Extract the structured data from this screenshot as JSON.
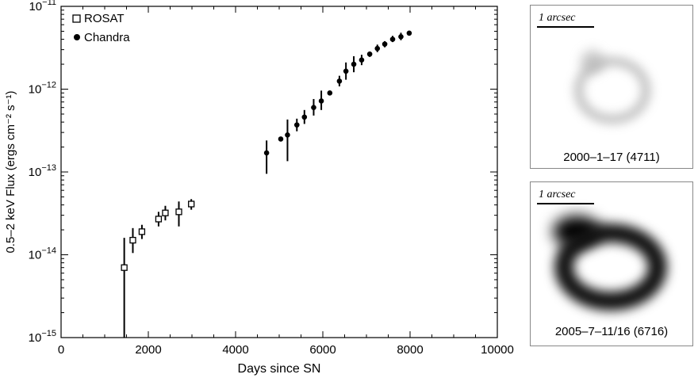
{
  "chart_data": {
    "type": "scatter",
    "xlabel": "Days since SN",
    "ylabel": "0.5–2 keV Flux (ergs cm⁻² s⁻¹)",
    "xlim": [
      0,
      10000
    ],
    "ylim": [
      1e-15,
      1e-11
    ],
    "yscale": "log",
    "xticks": [
      0,
      2000,
      4000,
      6000,
      8000,
      10000
    ],
    "xtick_labels": [
      "0",
      "2000",
      "4000",
      "6000",
      "8000",
      "10000"
    ],
    "ytick_exponents": [
      -15,
      -14,
      -13,
      -12,
      -11
    ],
    "ytick_base": "10",
    "legend_position": "top-left",
    "series": [
      {
        "name": "ROSAT",
        "marker": "open-square",
        "x": [
          1448,
          1645,
          1853,
          2235,
          2390,
          2700,
          2985
        ],
        "y": [
          7e-15,
          1.5e-14,
          1.9e-14,
          2.7e-14,
          3.2e-14,
          3.3e-14,
          4.1e-14
        ],
        "y_err_low": [
          1e-15,
          1.05e-14,
          1.55e-14,
          2.2e-14,
          2.6e-14,
          2.2e-14,
          3.5e-14
        ],
        "y_err_high": [
          1.6e-14,
          2.1e-14,
          2.3e-14,
          3.3e-14,
          3.9e-14,
          4.4e-14,
          4.7e-14
        ]
      },
      {
        "name": "Chandra",
        "marker": "filled-circle",
        "x": [
          4711,
          5036,
          5190,
          5405,
          5578,
          5790,
          5965,
          6160,
          6380,
          6530,
          6710,
          6890,
          7075,
          7250,
          7420,
          7600,
          7790,
          7980
        ],
        "y": [
          1.7e-13,
          2.5e-13,
          2.8e-13,
          3.7e-13,
          4.6e-13,
          6e-13,
          7.2e-13,
          9e-13,
          1.25e-12,
          1.65e-12,
          2e-12,
          2.25e-12,
          2.65e-12,
          3.1e-12,
          3.5e-12,
          4e-12,
          4.3e-12,
          4.75e-12
        ],
        "y_err_low": [
          9.5e-14,
          2.4e-13,
          1.35e-13,
          3.1e-13,
          3.8e-13,
          4.8e-13,
          5.6e-13,
          8.6e-13,
          1.08e-12,
          1.3e-12,
          1.6e-12,
          1.95e-12,
          2.45e-12,
          2.8e-12,
          3.2e-12,
          3.7e-12,
          3.9e-12,
          4.45e-12
        ],
        "y_err_high": [
          2.4e-13,
          2.6e-13,
          4.3e-13,
          4.4e-13,
          5.6e-13,
          7.6e-13,
          9.6e-13,
          9.4e-13,
          1.45e-12,
          2.1e-12,
          2.5e-12,
          2.6e-12,
          2.85e-12,
          3.45e-12,
          3.8e-12,
          4.4e-12,
          4.8e-12,
          5.05e-12
        ]
      }
    ]
  },
  "images": [
    {
      "scale_label": "1 arcsec",
      "caption": "2000–1–17 (4711)"
    },
    {
      "scale_label": "1 arcsec",
      "caption": "2005–7–11/16 (6716)"
    }
  ]
}
